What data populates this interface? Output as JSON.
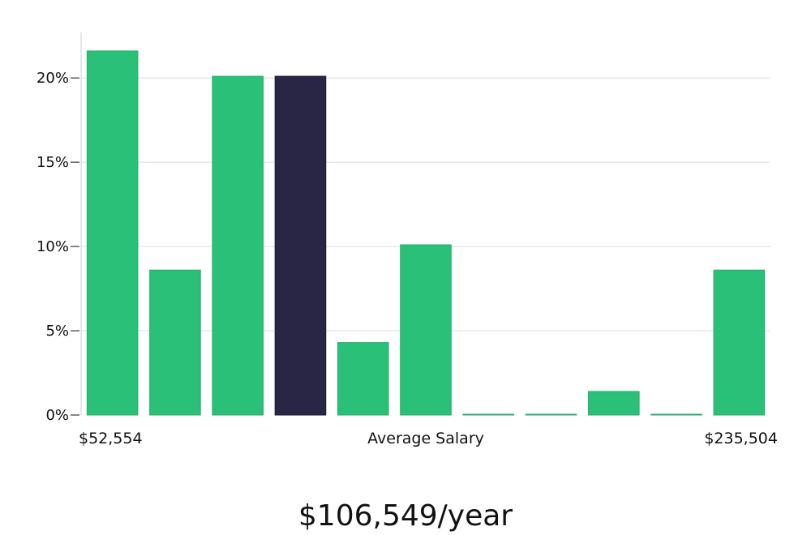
{
  "chart_data": {
    "type": "bar",
    "title": "",
    "xlabel": "Average Salary",
    "ylabel": "",
    "y_ticks": [
      "0%",
      "5%",
      "10%",
      "15%",
      "20%"
    ],
    "ylim": [
      0,
      22.7
    ],
    "grid": true,
    "x_range_labels": {
      "min": "$52,554",
      "max": "$235,504"
    },
    "summary": "$106,549/year",
    "categories": [
      "1",
      "2",
      "3",
      "4",
      "5",
      "6",
      "7",
      "8",
      "9",
      "10",
      "11"
    ],
    "values": [
      21.6,
      8.6,
      20.1,
      20.1,
      4.3,
      10.1,
      0,
      0,
      1.4,
      0,
      8.6
    ],
    "highlight_index": 3,
    "colors": {
      "bar": "#2ac078",
      "bar_stroke": "#22b06d",
      "highlight": "#282644",
      "highlight_stroke": "#1b1a38"
    }
  }
}
